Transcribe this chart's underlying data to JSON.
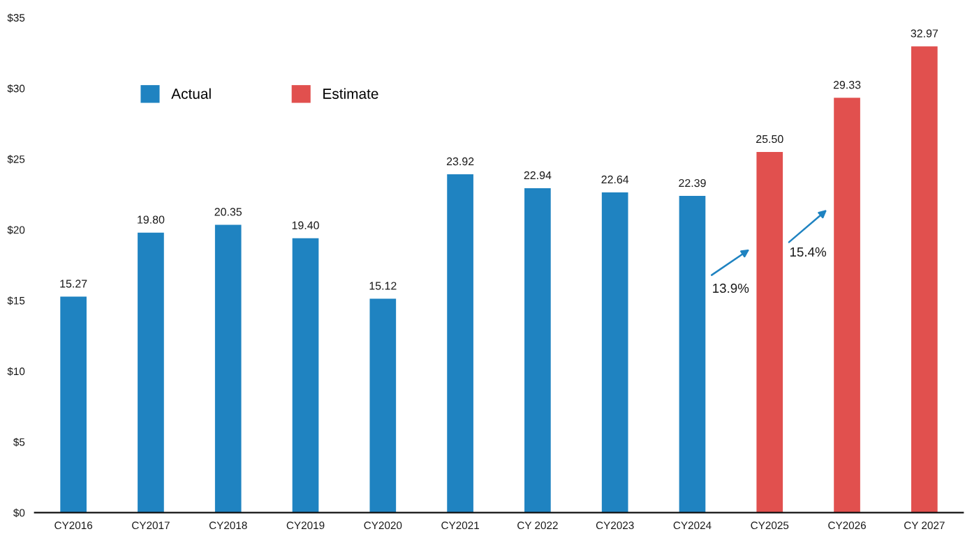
{
  "chart_data": {
    "type": "bar",
    "stacked": true,
    "categories": [
      "CY2016",
      "CY2017",
      "CY2018",
      "CY2019",
      "CY2020",
      "CY2021",
      "CY 2022",
      "CY2023",
      "CY2024",
      "CY2025",
      "CY2026",
      "CY 2027"
    ],
    "series": [
      {
        "name": "Actual",
        "color": "#1f83c1",
        "values": [
          15.27,
          19.8,
          20.35,
          19.4,
          15.12,
          23.92,
          22.94,
          22.64,
          22.39,
          null,
          null,
          null
        ],
        "value_labels": [
          "15.27",
          "19.80",
          "20.35",
          "19.40",
          "15.12",
          "23.92",
          "22.94",
          "22.64",
          "22.39",
          null,
          null,
          null
        ]
      },
      {
        "name": "Estimate",
        "color": "#e1504e",
        "values": [
          null,
          null,
          null,
          null,
          null,
          null,
          null,
          null,
          null,
          25.5,
          29.33,
          32.97
        ],
        "value_labels": [
          null,
          null,
          null,
          null,
          null,
          null,
          null,
          null,
          null,
          "25.50",
          "29.33",
          "32.97"
        ]
      }
    ],
    "ylim": [
      0,
      35
    ],
    "yticks": [
      {
        "value": 0,
        "label": "$0"
      },
      {
        "value": 5,
        "label": "$5"
      },
      {
        "value": 10,
        "label": "$10"
      },
      {
        "value": 15,
        "label": "$15"
      },
      {
        "value": 20,
        "label": "$20"
      },
      {
        "value": 25,
        "label": "$25"
      },
      {
        "value": 30,
        "label": "$30"
      },
      {
        "value": 35,
        "label": "$35"
      }
    ],
    "annotations": [
      "13.9%",
      "15.4%"
    ],
    "grid": false,
    "legend": "top left"
  }
}
